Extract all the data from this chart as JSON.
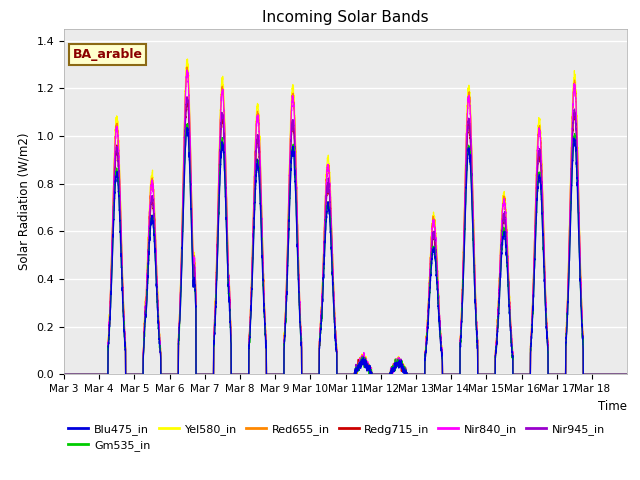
{
  "title": "Incoming Solar Bands",
  "xlabel": "Time",
  "ylabel": "Solar Radiation (W/m2)",
  "annotation": "BA_arable",
  "ylim": [
    0,
    1.45
  ],
  "yticks": [
    0.0,
    0.2,
    0.4,
    0.6,
    0.8,
    1.0,
    1.2,
    1.4
  ],
  "xtick_labels": [
    "Mar 3",
    "Mar 4",
    "Mar 5",
    "Mar 6",
    "Mar 7",
    "Mar 8",
    "Mar 9",
    "Mar 10",
    "Mar 11",
    "Mar 12",
    "Mar 13",
    "Mar 14",
    "Mar 15",
    "Mar 16",
    "Mar 17",
    "Mar 18"
  ],
  "bg_color": "#ebebeb",
  "grid_color": "#ffffff",
  "n_days": 16,
  "day_peaks_yel": [
    0.0,
    1.08,
    0.84,
    1.32,
    1.24,
    1.13,
    1.21,
    0.91,
    0.07,
    0.06,
    0.67,
    1.21,
    0.76,
    1.07,
    1.26,
    0.0
  ],
  "band_scales": {
    "Blu475_in": 0.78,
    "Gm535_in": 0.79,
    "Yel580_in": 1.0,
    "Red655_in": 0.97,
    "Redg715_in": 0.87,
    "Nir840_in": 0.96,
    "Nir945_in": 0.88
  },
  "colors": {
    "Blu475_in": "#0000dd",
    "Gm535_in": "#00cc00",
    "Yel580_in": "#ffff00",
    "Red655_in": "#ff8800",
    "Redg715_in": "#cc0000",
    "Nir840_in": "#ff00ff",
    "Nir945_in": "#9900cc"
  },
  "plot_order": [
    "Yel580_in",
    "Red655_in",
    "Redg715_in",
    "Nir840_in",
    "Nir945_in",
    "Gm535_in",
    "Blu475_in"
  ],
  "legend_order": [
    "Blu475_in",
    "Gm535_in",
    "Yel580_in",
    "Red655_in",
    "Redg715_in",
    "Nir840_in",
    "Nir945_in"
  ]
}
